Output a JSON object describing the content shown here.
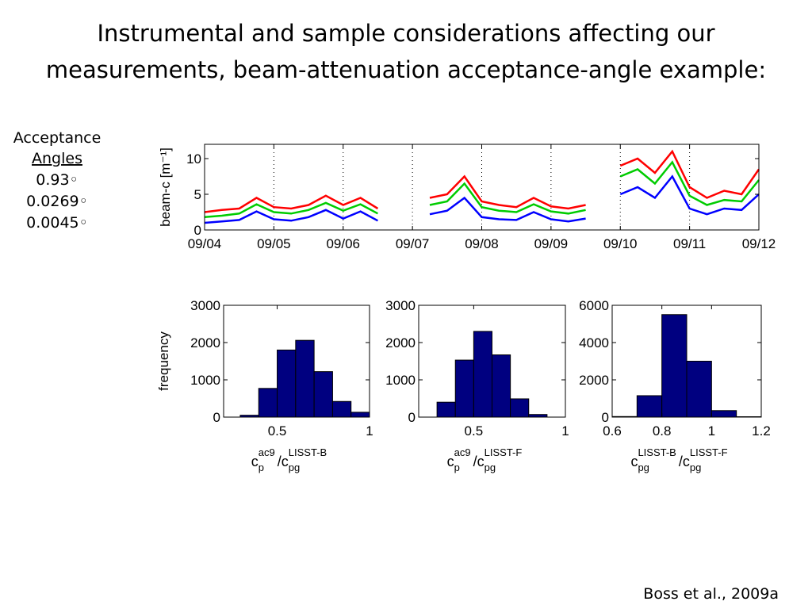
{
  "slide": {
    "title": [
      "Instrumental and sample considerations affecting our",
      "measurements, beam-attenuation acceptance-angle example:"
    ],
    "legend_title": [
      "Acceptance",
      "Angles"
    ],
    "citation": "Boss et al., 2009a"
  },
  "chart_data": [
    {
      "type": "line",
      "ylabel": "beam-c [m⁻¹]",
      "x": [
        4.0,
        4.25,
        4.5,
        4.75,
        5.0,
        5.25,
        5.5,
        5.75,
        6.0,
        6.25,
        6.5,
        6.75,
        7.0,
        7.25,
        7.5,
        7.75,
        8.0,
        8.25,
        8.5,
        8.75,
        9.0,
        9.25,
        9.5,
        9.75,
        10.0,
        10.25,
        10.5,
        10.75,
        11.0,
        11.25,
        11.5,
        11.75,
        12.0
      ],
      "series": [
        {
          "name": "0.93◦",
          "color": "#ff0000",
          "values": [
            2.5,
            2.8,
            3.0,
            4.5,
            3.2,
            3.0,
            3.5,
            4.8,
            3.5,
            4.5,
            3.0,
            null,
            null,
            4.5,
            5.0,
            7.5,
            4.0,
            3.5,
            3.2,
            4.5,
            3.3,
            3.0,
            3.5,
            null,
            9,
            10,
            8,
            11,
            6,
            4.5,
            5.5,
            5,
            8.5
          ]
        },
        {
          "name": "0.0269◦",
          "color": "#00cc00",
          "values": [
            1.8,
            2.0,
            2.3,
            3.6,
            2.5,
            2.3,
            2.8,
            3.8,
            2.7,
            3.6,
            2.3,
            null,
            null,
            3.5,
            4.0,
            6.5,
            3.2,
            2.7,
            2.5,
            3.6,
            2.6,
            2.3,
            2.8,
            null,
            7.5,
            8.5,
            6.5,
            9.5,
            4.8,
            3.5,
            4.2,
            4,
            7
          ]
        },
        {
          "name": "0.0045◦",
          "color": "#0000ff",
          "values": [
            1.0,
            1.2,
            1.4,
            2.6,
            1.5,
            1.3,
            1.8,
            2.8,
            1.6,
            2.6,
            1.3,
            null,
            null,
            2.2,
            2.7,
            4.5,
            1.8,
            1.5,
            1.4,
            2.5,
            1.5,
            1.2,
            1.6,
            null,
            5,
            6,
            4.5,
            7.5,
            3,
            2.2,
            3,
            2.8,
            5
          ]
        }
      ],
      "xlim": [
        4,
        12
      ],
      "xticks": [
        {
          "value": 4,
          "label": "09/04"
        },
        {
          "value": 5,
          "label": "09/05"
        },
        {
          "value": 6,
          "label": "09/06"
        },
        {
          "value": 7,
          "label": "09/07"
        },
        {
          "value": 8,
          "label": "09/08"
        },
        {
          "value": 9,
          "label": "09/09"
        },
        {
          "value": 10,
          "label": "09/10"
        },
        {
          "value": 11,
          "label": "09/11"
        },
        {
          "value": 12,
          "label": "09/12"
        }
      ],
      "ylim": [
        0,
        12
      ],
      "yticks": [
        0,
        5,
        10
      ],
      "grid": "x"
    },
    {
      "type": "histogram",
      "ylabel": "frequency",
      "color": "#000080",
      "xlabel": [
        {
          "text": "c",
          "sub": "p",
          "sup": "ac9"
        },
        {
          "text": "/c",
          "sub": "pg",
          "sup": "LISST-B"
        }
      ],
      "bins": [
        0.3,
        0.4,
        0.5,
        0.6,
        0.7,
        0.8,
        0.9,
        1.0
      ],
      "values": [
        50,
        770,
        1800,
        2060,
        1220,
        420,
        130
      ],
      "xlim": [
        0.21,
        1.0
      ],
      "xticks": [
        0.5,
        1
      ],
      "ylim": [
        0,
        3000
      ],
      "yticks": [
        0,
        1000,
        2000,
        3000
      ]
    },
    {
      "type": "histogram",
      "color": "#000080",
      "xlabel": [
        {
          "text": "c",
          "sub": "p",
          "sup": "ac9"
        },
        {
          "text": "/c",
          "sub": "pg",
          "sup": "LISST-F"
        }
      ],
      "bins": [
        0.3,
        0.4,
        0.5,
        0.6,
        0.7,
        0.8,
        0.9
      ],
      "values": [
        400,
        1530,
        2300,
        1670,
        490,
        70
      ],
      "xlim": [
        0.2,
        1.0
      ],
      "xticks": [
        0.5,
        1
      ],
      "ylim": [
        0,
        3000
      ],
      "yticks": [
        0,
        1000,
        2000,
        3000
      ]
    },
    {
      "type": "histogram",
      "color": "#000080",
      "xlabel": [
        {
          "text": "c",
          "sub": "pg",
          "sup": "LISST-B"
        },
        {
          "text": "/c",
          "sub": "pg",
          "sup": "LISST-F"
        }
      ],
      "bins": [
        0.6,
        0.7,
        0.8,
        0.9,
        1.0,
        1.1,
        1.2
      ],
      "values": [
        30,
        1150,
        5500,
        3000,
        350,
        20
      ],
      "xlim": [
        0.6,
        1.2
      ],
      "xticks": [
        0.6,
        0.8,
        1,
        1.2
      ],
      "ylim": [
        0,
        6000
      ],
      "yticks": [
        0,
        2000,
        4000,
        6000
      ]
    }
  ]
}
